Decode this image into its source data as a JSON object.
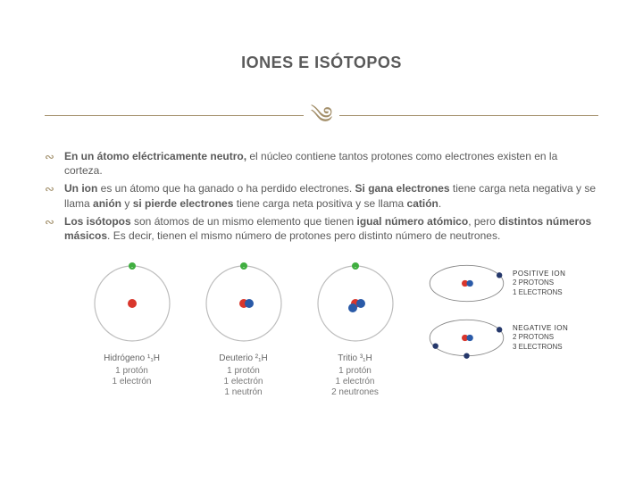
{
  "title": "IONES E ISÓTOPOS",
  "bullets": [
    "<b>En un átomo eléctricamente neutro,</b> el núcleo contiene tantos protones como electrones existen en la corteza.",
    "<b>Un ion</b> es un átomo que ha ganado o ha perdido electrones. <b>Si gana electrones</b> tiene carga neta negativa y se llama <b>anión</b> y <b>si pierde electrones</b> tiene carga neta positiva y se llama <b>catión</b>.",
    "<b>Los isótopos</b> son átomos de un mismo elemento que tienen <b>igual número atómico</b>, pero <b>distintos números másicos</b>. Es decir, tienen el mismo número de protones pero distinto número de neutrones."
  ],
  "isotopes": [
    {
      "name": "Hidrógeno ¹₁H",
      "lines": [
        "1 protón",
        "1 electrón"
      ],
      "protons": 1,
      "neutrons": 0
    },
    {
      "name": "Deuterio ²₁H",
      "lines": [
        "1 protón",
        "1 electrón",
        "1 neutrón"
      ],
      "protons": 1,
      "neutrons": 1
    },
    {
      "name": "Tritio ³₁H",
      "lines": [
        "1 protón",
        "1 electrón",
        "2 neutrones"
      ],
      "protons": 1,
      "neutrons": 2
    }
  ],
  "ions": {
    "positive": {
      "title": "POSITIVE ION",
      "desc": "2 PROTONS\n1 ELECTRONS"
    },
    "negative": {
      "title": "NEGATIVE ION",
      "desc": "2 PROTONS\n3 ELECTRONS"
    }
  },
  "colors": {
    "title_text": "#5a5a5a",
    "body_text": "#5a5a5a",
    "accent": "#a38f6a",
    "proton": "#d9362c",
    "neutron": "#2a5aa8",
    "electron": "#3fae3f",
    "orbit_stroke": "#bdbdbd",
    "background": "#ffffff"
  },
  "typography": {
    "title_fontsize": 18,
    "body_fontsize": 12,
    "caption_fontsize": 10,
    "ion_fontsize": 8,
    "font_family": "Arial"
  }
}
